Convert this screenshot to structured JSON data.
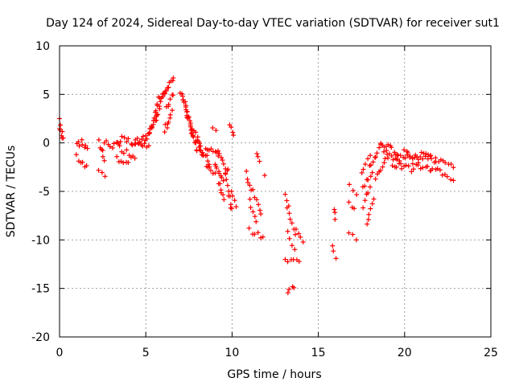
{
  "chart_data": {
    "type": "scatter",
    "title": "Day 124 of 2024, Sidereal Day-to-day VTEC variation (SDTVAR) for receiver sut1",
    "xlabel": "GPS time / hours",
    "ylabel": "SDTVAR / TECUs",
    "xlim": [
      0,
      25
    ],
    "ylim": [
      -20,
      10
    ],
    "xticks": [
      "0",
      "5",
      "10",
      "15",
      "20",
      "25"
    ],
    "yticks": [
      "10",
      "5",
      "0",
      "-5",
      "-10",
      "-15",
      "-20"
    ],
    "grid": true,
    "marker": "+",
    "color": "#ff0000",
    "segments": [
      [
        0.0,
        2.5,
        0.25,
        0.5,
        4,
        0
      ],
      [
        0.0,
        1.5,
        0.15,
        0.6,
        4,
        0.4
      ],
      [
        1.0,
        0.2,
        1.6,
        -0.4,
        8,
        0.8
      ],
      [
        1.0,
        -1.5,
        1.6,
        -2.6,
        6,
        0.6
      ],
      [
        2.3,
        0.0,
        2.6,
        -1.5,
        6,
        0.8
      ],
      [
        2.3,
        -2.8,
        2.6,
        -3.4,
        3,
        0.3
      ],
      [
        2.6,
        0.0,
        3.4,
        -0.4,
        8,
        0.8
      ],
      [
        3.3,
        -1.5,
        4.0,
        -2.3,
        6,
        0.6
      ],
      [
        3.4,
        0.2,
        4.5,
        0.1,
        10,
        1.0
      ],
      [
        3.5,
        -0.5,
        4.4,
        -1.5,
        8,
        0.6
      ],
      [
        4.2,
        0.0,
        5.0,
        0.6,
        8,
        0.6
      ],
      [
        4.6,
        -0.3,
        5.2,
        -0.2,
        6,
        0.5
      ],
      [
        5.0,
        0.2,
        5.6,
        2.6,
        10,
        0.5
      ],
      [
        5.2,
        0.8,
        5.8,
        4.8,
        12,
        0.6
      ],
      [
        5.6,
        2.5,
        6.1,
        5.5,
        10,
        0.5
      ],
      [
        6.0,
        4.8,
        6.6,
        6.8,
        10,
        0.4
      ],
      [
        6.1,
        1.5,
        6.5,
        3.0,
        8,
        0.8
      ],
      [
        6.2,
        3.5,
        6.6,
        5.0,
        6,
        0.5
      ],
      [
        7.0,
        5.3,
        7.4,
        3.2,
        8,
        0.5
      ],
      [
        7.2,
        4.5,
        7.7,
        0.8,
        10,
        0.6
      ],
      [
        7.4,
        3.0,
        8.0,
        -0.8,
        12,
        0.7
      ],
      [
        7.6,
        2.0,
        8.3,
        -1.2,
        12,
        0.7
      ],
      [
        8.0,
        0.0,
        8.7,
        -2.0,
        10,
        0.6
      ],
      [
        8.5,
        -0.5,
        9.2,
        -1.2,
        8,
        0.6
      ],
      [
        8.5,
        -2.3,
        9.0,
        -3.2,
        6,
        0.5
      ],
      [
        8.9,
        1.5,
        9.1,
        1.3,
        2,
        0.2
      ],
      [
        9.0,
        -2.0,
        9.5,
        -4.0,
        8,
        0.5
      ],
      [
        9.2,
        -4.0,
        9.5,
        -5.8,
        6,
        0.5
      ],
      [
        9.2,
        -1.0,
        9.8,
        -3.0,
        8,
        0.6
      ],
      [
        9.6,
        -3.0,
        10.0,
        -7.0,
        10,
        0.5
      ],
      [
        9.9,
        2.0,
        10.1,
        0.8,
        4,
        0.3
      ],
      [
        10.0,
        -5.0,
        10.2,
        -6.5,
        4,
        0.4
      ],
      [
        10.8,
        -3.0,
        11.1,
        -5.0,
        5,
        0.5
      ],
      [
        11.0,
        -6.0,
        11.4,
        -8.0,
        5,
        0.5
      ],
      [
        11.0,
        -9.0,
        11.8,
        -9.8,
        6,
        0.5
      ],
      [
        11.2,
        -5.0,
        11.7,
        -7.5,
        6,
        0.6
      ],
      [
        11.4,
        -1.0,
        11.6,
        -1.8,
        3,
        0.3
      ],
      [
        11.9,
        -3.3,
        11.9,
        -3.3,
        1,
        0.2
      ],
      [
        13.1,
        -5.2,
        13.3,
        -6.5,
        3,
        0.3
      ],
      [
        13.2,
        -6.5,
        13.7,
        -9.5,
        6,
        0.5
      ],
      [
        13.2,
        -9.3,
        13.6,
        -11.0,
        4,
        0.4
      ],
      [
        13.1,
        -12.0,
        13.9,
        -12.3,
        6,
        0.5
      ],
      [
        13.7,
        -9.0,
        14.1,
        -10.3,
        4,
        0.4
      ],
      [
        13.2,
        -15.3,
        13.6,
        -14.8,
        4,
        0.3
      ],
      [
        15.9,
        -6.8,
        16.0,
        -7.8,
        3,
        0.3
      ],
      [
        15.8,
        -10.5,
        16.0,
        -12.0,
        3,
        0.3
      ],
      [
        16.8,
        -4.3,
        17.2,
        -5.2,
        3,
        0.4
      ],
      [
        16.8,
        -6.2,
        17.1,
        -6.8,
        3,
        0.3
      ],
      [
        16.8,
        -9.2,
        17.2,
        -10.0,
        3,
        0.4
      ],
      [
        17.5,
        -3.0,
        18.0,
        -1.0,
        5,
        0.6
      ],
      [
        17.6,
        -4.8,
        18.1,
        -2.8,
        6,
        0.6
      ],
      [
        17.6,
        -6.5,
        18.0,
        -4.5,
        5,
        0.5
      ],
      [
        17.8,
        -8.5,
        18.2,
        -6.0,
        6,
        0.5
      ],
      [
        18.0,
        -2.5,
        18.6,
        -0.3,
        8,
        0.6
      ],
      [
        18.3,
        -3.5,
        19.0,
        -1.5,
        8,
        0.6
      ],
      [
        18.6,
        0.0,
        19.6,
        -1.0,
        10,
        0.6
      ],
      [
        18.8,
        -0.8,
        19.8,
        -2.0,
        10,
        0.6
      ],
      [
        19.3,
        -2.2,
        20.5,
        -2.8,
        10,
        0.6
      ],
      [
        19.6,
        -1.4,
        21.5,
        -1.5,
        14,
        0.5
      ],
      [
        20.0,
        -0.8,
        20.8,
        -1.8,
        8,
        0.6
      ],
      [
        20.5,
        -2.4,
        21.5,
        -2.6,
        8,
        0.6
      ],
      [
        21.0,
        -1.2,
        21.8,
        -1.8,
        8,
        0.6
      ],
      [
        21.5,
        -2.6,
        22.8,
        -3.6,
        10,
        0.6
      ],
      [
        21.8,
        -1.8,
        22.8,
        -2.3,
        8,
        0.5
      ]
    ]
  }
}
